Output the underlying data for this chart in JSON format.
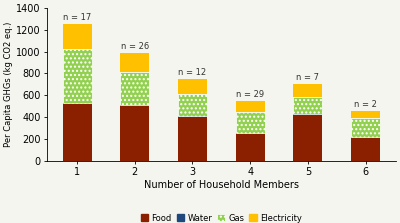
{
  "categories": [
    "1",
    "2",
    "3",
    "4",
    "5",
    "6"
  ],
  "n_labels": [
    "n = 17",
    "n = 26",
    "n = 12",
    "n = 29",
    "n = 7",
    "n = 2"
  ],
  "food": [
    520,
    500,
    400,
    240,
    420,
    205
  ],
  "water": [
    12,
    12,
    12,
    12,
    12,
    12
  ],
  "gas": [
    490,
    305,
    200,
    190,
    155,
    170
  ],
  "electricity": [
    235,
    170,
    140,
    105,
    120,
    65
  ],
  "food_color": "#8B2000",
  "water_color": "#1F497D",
  "gas_color": "#92D050",
  "electricity_color": "#FFC000",
  "gas_hatch_color": "#7EC53E",
  "ylabel": "Per Capita GHGs (kg CO2 eq.)",
  "xlabel": "Number of Household Members",
  "ylim": [
    0,
    1400
  ],
  "yticks": [
    0,
    200,
    400,
    600,
    800,
    1000,
    1200,
    1400
  ],
  "background_color": "#F5F5F0",
  "legend_labels": [
    "Food",
    "Water",
    "Gas",
    "Electricity"
  ]
}
